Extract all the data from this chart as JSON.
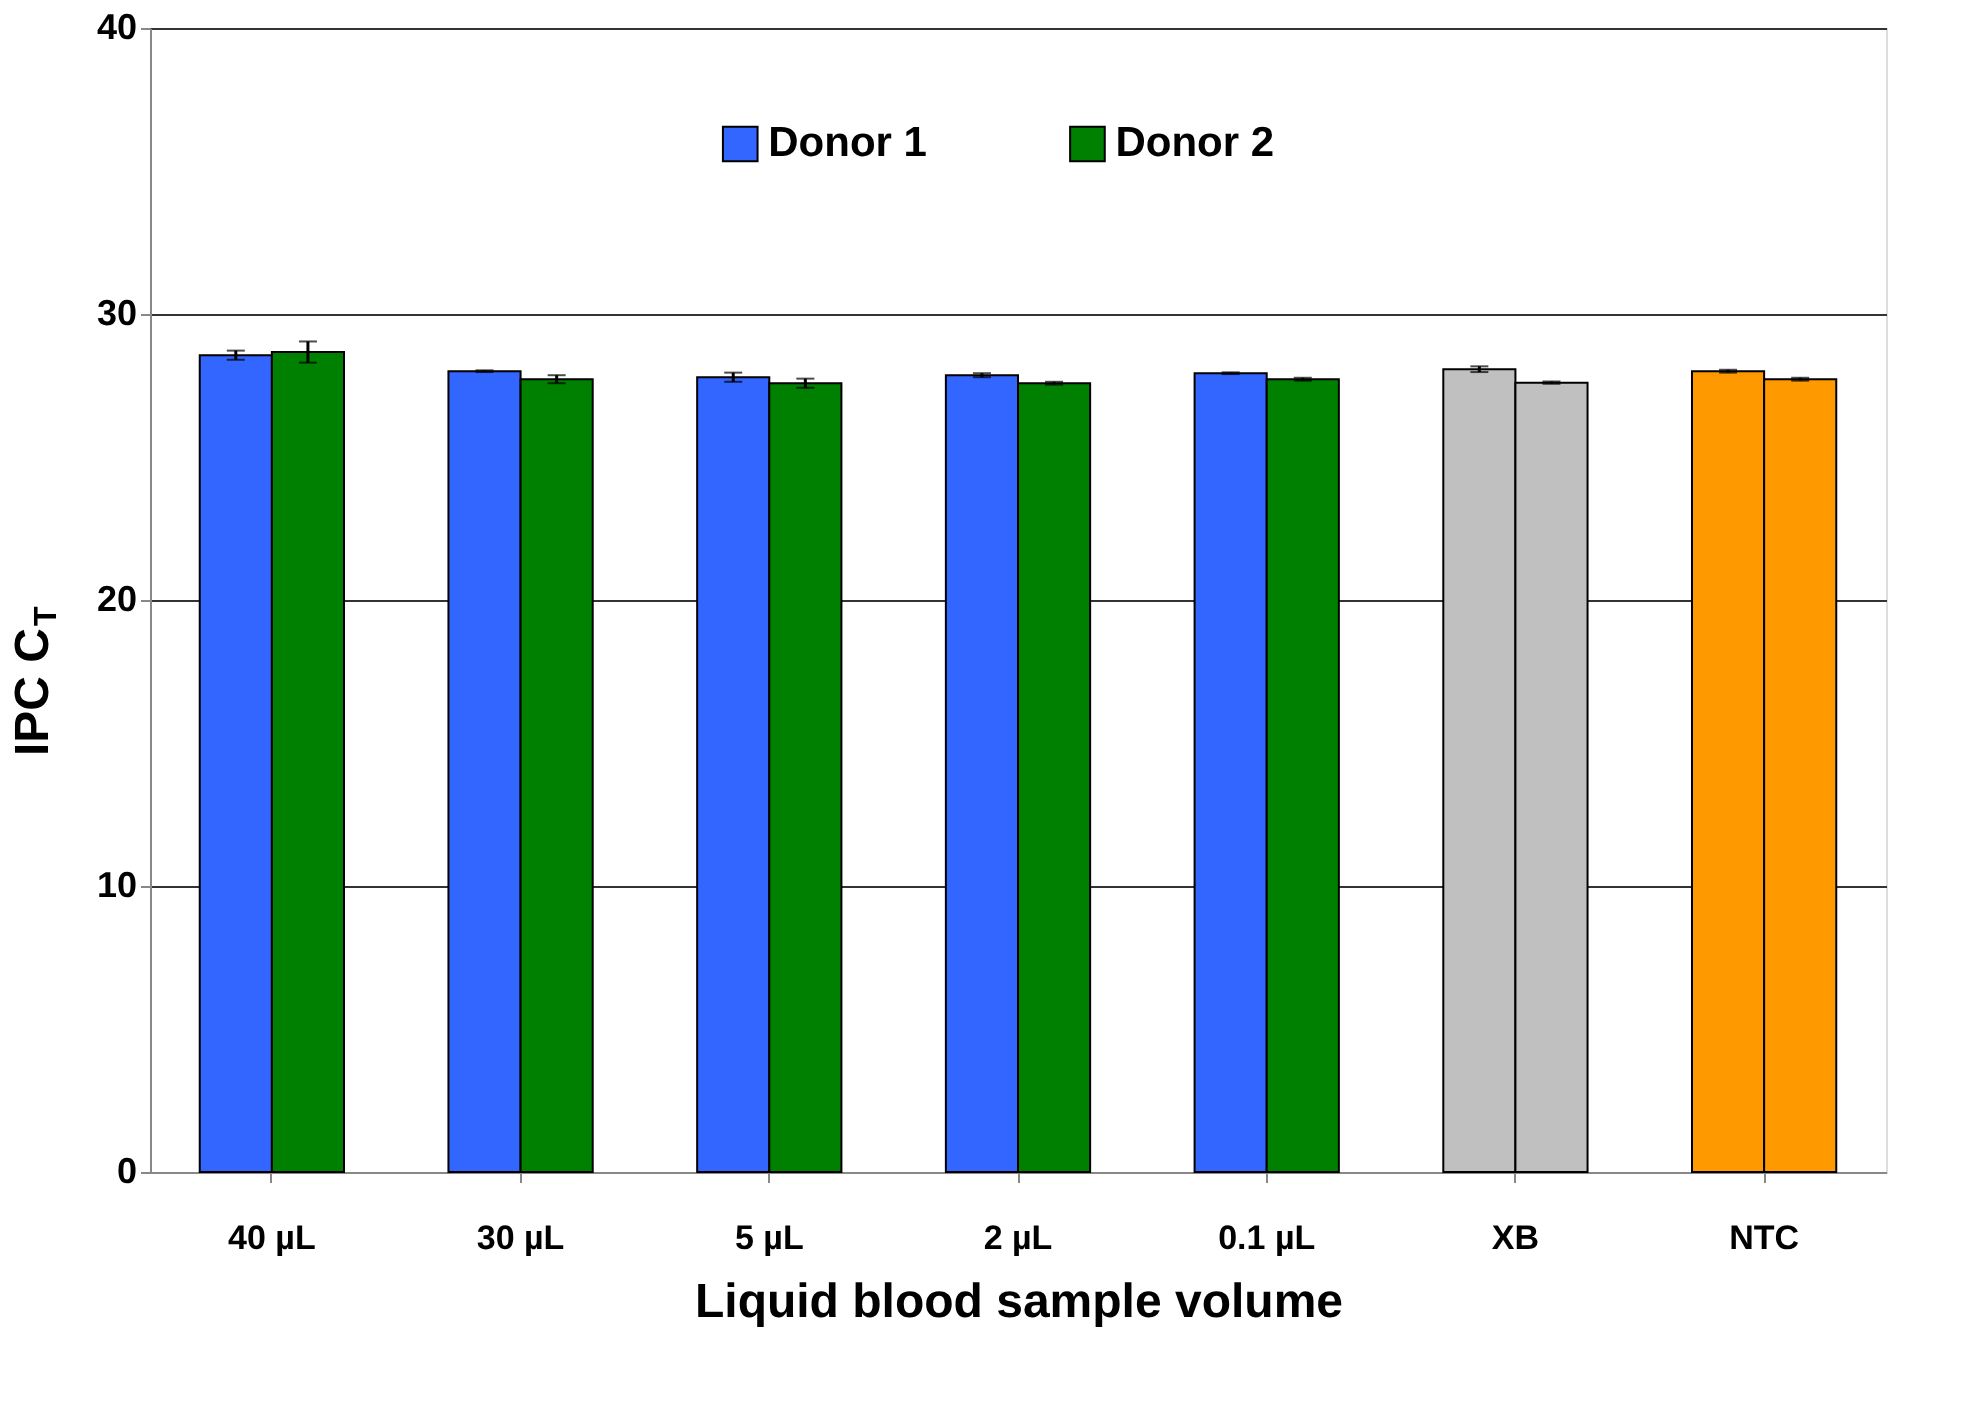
{
  "chart_data": {
    "type": "bar",
    "xlabel": "Liquid blood sample volume",
    "ylabel": "IPC C$_{T}$",
    "categories": [
      "40 µL",
      "30 µL",
      "5 µL",
      "2 µL",
      "0.1 µL",
      "XB",
      "NTC"
    ],
    "series": [
      {
        "name": "Donor 1",
        "color": "#3366ff",
        "colors": [
          "#3366ff",
          "#3366ff",
          "#3366ff",
          "#3366ff",
          "#3366ff",
          "#c0c0c0",
          "#ff9900"
        ],
        "values": [
          28.56,
          28.0,
          27.79,
          27.86,
          27.93,
          28.07,
          28.0
        ],
        "errors": [
          0.16,
          0.03,
          0.16,
          0.07,
          0.03,
          0.1,
          0.05
        ]
      },
      {
        "name": "Donor 2",
        "color": "#008000",
        "colors": [
          "#008000",
          "#008000",
          "#008000",
          "#008000",
          "#008000",
          "#c0c0c0",
          "#ff9900"
        ],
        "values": [
          28.67,
          27.72,
          27.58,
          27.58,
          27.72,
          27.6,
          27.72
        ],
        "errors": [
          0.37,
          0.14,
          0.16,
          0.05,
          0.05,
          0.04,
          0.05
        ]
      }
    ],
    "ylim": [
      0,
      40
    ],
    "yticks": [
      0,
      10,
      20,
      30,
      40
    ],
    "grid": "y",
    "legend": "top"
  }
}
